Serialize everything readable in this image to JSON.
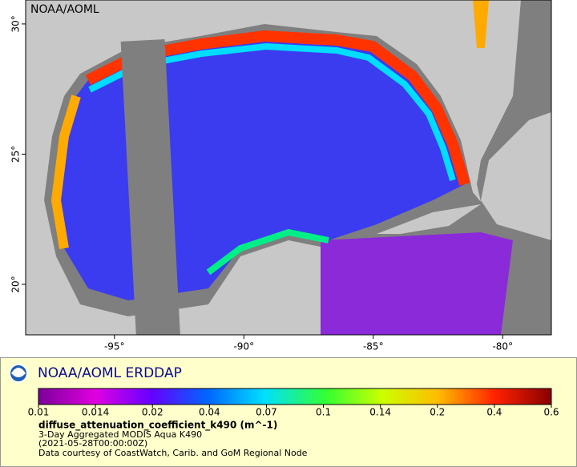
{
  "map": {
    "watermark": "NOAA/AOML",
    "xlim": [
      -98.43,
      -78.12
    ],
    "ylim": [
      18.06,
      30.92
    ],
    "xticks": [
      {
        "value": -95,
        "label": "-95°"
      },
      {
        "value": -90,
        "label": "-90°"
      },
      {
        "value": -85,
        "label": "-85°"
      },
      {
        "value": -80,
        "label": "-80°"
      }
    ],
    "yticks": [
      {
        "value": 20,
        "label": "20°"
      },
      {
        "value": 25,
        "label": "25°"
      },
      {
        "value": 30,
        "label": "30°"
      }
    ]
  },
  "legend": {
    "title": "NOAA/AOML ERDDAP",
    "colorbar_ticks": [
      0.01,
      0.014,
      0.02,
      0.04,
      0.07,
      0.1,
      0.14,
      0.2,
      0.4,
      0.6
    ],
    "variable": "diffuse_attenuation_coefficient_k490 (m^-1)",
    "lines": [
      "3-Day Aggregated MODIS Aqua K490",
      "(2021-05-28T00:00:00Z)",
      "Data courtesy of CoastWatch, Carib. and GoM Regional Node"
    ]
  }
}
